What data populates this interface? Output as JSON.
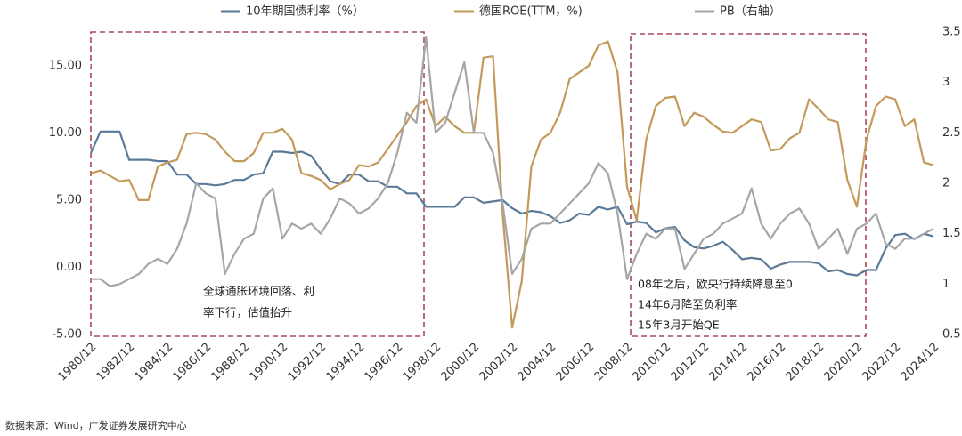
{
  "chart_data": {
    "type": "line",
    "x": [
      "1980/12",
      "1981/06",
      "1981/12",
      "1982/06",
      "1982/12",
      "1983/06",
      "1983/12",
      "1984/06",
      "1984/12",
      "1985/06",
      "1985/12",
      "1986/06",
      "1986/12",
      "1987/06",
      "1987/12",
      "1988/06",
      "1988/12",
      "1989/06",
      "1989/12",
      "1990/06",
      "1990/12",
      "1991/06",
      "1991/12",
      "1992/06",
      "1992/12",
      "1993/06",
      "1993/12",
      "1994/06",
      "1994/12",
      "1995/06",
      "1995/12",
      "1996/06",
      "1996/12",
      "1997/06",
      "1997/12",
      "1998/06",
      "1998/12",
      "1999/06",
      "1999/12",
      "2000/06",
      "2000/12",
      "2001/06",
      "2001/12",
      "2002/06",
      "2002/12",
      "2003/06",
      "2003/12",
      "2004/06",
      "2004/12",
      "2005/06",
      "2005/12",
      "2006/06",
      "2006/12",
      "2007/06",
      "2007/12",
      "2008/06",
      "2008/12",
      "2009/06",
      "2009/12",
      "2010/06",
      "2010/12",
      "2011/06",
      "2011/12",
      "2012/06",
      "2012/12",
      "2013/06",
      "2013/12",
      "2014/06",
      "2014/12",
      "2015/06",
      "2015/12",
      "2016/06",
      "2016/12",
      "2017/06",
      "2017/12",
      "2018/06",
      "2018/12",
      "2019/06",
      "2019/12",
      "2020/06",
      "2020/12",
      "2021/06",
      "2021/12",
      "2022/06",
      "2022/12",
      "2023/06",
      "2023/12",
      "2024/06",
      "2024/12"
    ],
    "xticks": [
      "1980/12",
      "1982/12",
      "1984/12",
      "1986/12",
      "1988/12",
      "1990/12",
      "1992/12",
      "1994/12",
      "1996/12",
      "1998/12",
      "2000/12",
      "2002/12",
      "2004/12",
      "2006/12",
      "2008/12",
      "2010/12",
      "2012/12",
      "2014/12",
      "2016/12",
      "2018/12",
      "2020/12",
      "2022/12",
      "2024/12"
    ],
    "series": [
      {
        "name": "10年期国债利率（%）",
        "color": "#5b7a99",
        "values": [
          8.5,
          10.1,
          10.1,
          10.1,
          8.0,
          8.0,
          8.0,
          7.9,
          7.9,
          6.9,
          6.9,
          6.2,
          6.2,
          6.1,
          6.2,
          6.5,
          6.5,
          6.9,
          7.0,
          8.6,
          8.6,
          8.5,
          8.6,
          8.3,
          7.3,
          6.4,
          6.2,
          6.9,
          6.9,
          6.4,
          6.4,
          6.0,
          6.0,
          5.5,
          5.5,
          4.5,
          4.5,
          4.5,
          4.5,
          5.2,
          5.2,
          4.8,
          4.9,
          5.0,
          4.4,
          4.0,
          4.2,
          4.1,
          3.8,
          3.3,
          3.5,
          4.0,
          3.9,
          4.5,
          4.3,
          4.5,
          3.2,
          3.4,
          3.3,
          2.6,
          2.9,
          3.0,
          2.0,
          1.5,
          1.4,
          1.6,
          1.9,
          1.3,
          0.6,
          0.7,
          0.6,
          -0.1,
          0.2,
          0.4,
          0.4,
          0.4,
          0.3,
          -0.3,
          -0.2,
          -0.5,
          -0.6,
          -0.2,
          -0.2,
          1.4,
          2.4,
          2.5,
          2.1,
          2.5,
          2.3
        ]
      },
      {
        "name": "德国ROE(TTM，%)",
        "color": "#c49a5a",
        "values": [
          7.0,
          7.2,
          6.8,
          6.4,
          6.5,
          5.0,
          5.0,
          7.5,
          7.8,
          8.0,
          9.9,
          10.0,
          9.9,
          9.5,
          8.6,
          7.9,
          7.9,
          8.5,
          10.0,
          10.0,
          10.3,
          9.5,
          7.0,
          6.8,
          6.5,
          5.8,
          6.2,
          6.5,
          7.6,
          7.5,
          7.8,
          8.8,
          9.8,
          10.8,
          12.0,
          12.5,
          10.5,
          11.2,
          10.5,
          10.0,
          10.0,
          15.6,
          15.7,
          4.0,
          -4.5,
          -1.0,
          7.5,
          9.5,
          10.0,
          11.5,
          14.0,
          14.5,
          15.0,
          16.5,
          16.8,
          14.5,
          6.0,
          3.5,
          9.5,
          12.0,
          12.6,
          12.7,
          10.5,
          11.5,
          11.2,
          10.6,
          10.1,
          10.0,
          10.5,
          11.0,
          10.8,
          8.7,
          8.8,
          9.6,
          10.0,
          12.5,
          11.8,
          11.0,
          10.8,
          6.5,
          4.5,
          9.5,
          12.0,
          12.7,
          12.5,
          10.5,
          11.0,
          7.8,
          7.6
        ]
      },
      {
        "name": "PB（右轴）",
        "color": "#a6a6a6",
        "axis": "y2",
        "values": [
          1.05,
          1.05,
          0.98,
          1.0,
          1.05,
          1.1,
          1.2,
          1.25,
          1.2,
          1.35,
          1.6,
          2.0,
          1.9,
          1.85,
          1.1,
          1.3,
          1.45,
          1.5,
          1.85,
          1.95,
          1.45,
          1.6,
          1.55,
          1.6,
          1.5,
          1.65,
          1.85,
          1.8,
          1.7,
          1.75,
          1.85,
          2.0,
          2.3,
          2.7,
          2.6,
          3.45,
          2.5,
          2.6,
          2.9,
          3.2,
          2.5,
          2.5,
          2.3,
          1.8,
          1.1,
          1.25,
          1.55,
          1.6,
          1.6,
          1.7,
          1.8,
          1.9,
          2.0,
          2.2,
          2.1,
          1.7,
          1.05,
          1.3,
          1.5,
          1.45,
          1.55,
          1.55,
          1.15,
          1.3,
          1.45,
          1.5,
          1.6,
          1.65,
          1.7,
          1.95,
          1.6,
          1.45,
          1.6,
          1.7,
          1.75,
          1.6,
          1.35,
          1.45,
          1.55,
          1.3,
          1.55,
          1.6,
          1.7,
          1.4,
          1.35,
          1.45,
          1.45,
          1.5,
          1.55
        ]
      }
    ],
    "ylim": [
      -5,
      17.5
    ],
    "yticks": [
      {
        "value": -5,
        "label": "-5.00"
      },
      {
        "value": 0,
        "label": "0.00"
      },
      {
        "value": 5,
        "label": "5.00"
      },
      {
        "value": 10,
        "label": "10.00"
      },
      {
        "value": 15,
        "label": "15.00"
      }
    ],
    "y2lim": [
      0.5,
      3.5
    ],
    "y2ticks": [
      0.5,
      1,
      1.5,
      2,
      2.5,
      3,
      3.5
    ],
    "annotations": [
      [
        "全球通胀环境回落、利",
        "率下行，估值抬升"
      ],
      [
        "08年之后，欧央行持续降息至0",
        "14年6月降至负利率",
        "15年3月开始QE"
      ]
    ],
    "source": "数据来源：Wind，广发证券发展研究中心"
  }
}
